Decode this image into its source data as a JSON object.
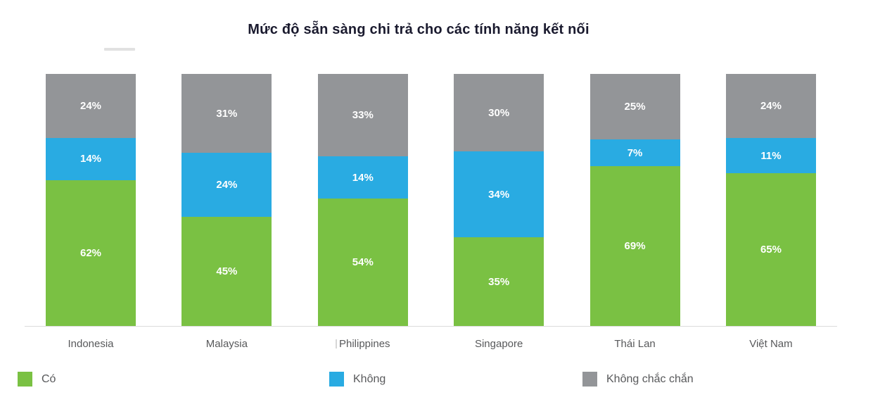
{
  "title": "Mức độ sẵn sàng chi trả cho các tính năng kết nối",
  "chart_data": {
    "type": "bar",
    "subtype": "stacked-percent-column",
    "title": "Mức độ sẵn sàng chi trả cho các tính năng kết nối",
    "categories": [
      "Indonesia",
      "Malaysia",
      "Philippines",
      "Singapore",
      "Thái Lan",
      "Việt Nam"
    ],
    "series": [
      {
        "name": "Có",
        "color": "#7AC143",
        "values": [
          62,
          45,
          54,
          35,
          69,
          65
        ],
        "labels": [
          "62%",
          "45%",
          "54%",
          "35%",
          "69%",
          "65%"
        ]
      },
      {
        "name": "Không",
        "color": "#29ABE2",
        "values": [
          14,
          24,
          14,
          34,
          7,
          11
        ],
        "labels": [
          "14%",
          "24%",
          "14%",
          "34%",
          "7%",
          "11%"
        ]
      },
      {
        "name": "Không chắc chắn",
        "color": "#939598",
        "values": [
          24,
          31,
          33,
          30,
          25,
          24
        ],
        "labels": [
          "24%",
          "31%",
          "33%",
          "30%",
          "25%",
          "24%"
        ]
      }
    ],
    "ylim": [
      0,
      100
    ],
    "value_format": "percent",
    "grid": false,
    "legend_position": "bottom",
    "stack_order_top_to_bottom": [
      "Không chắc chắn",
      "Không",
      "Có"
    ]
  },
  "legend": {
    "items": [
      {
        "label": "Có",
        "color": "#7AC143"
      },
      {
        "label": "Không",
        "color": "#29ABE2"
      },
      {
        "label": "Không chắc chắn",
        "color": "#939598"
      }
    ]
  },
  "colors": {
    "title_text": "#1A1A2E",
    "axis_line": "#DCDCDC",
    "axis_label_text": "#58595B",
    "segment_label_text": "#FFFFFF"
  }
}
